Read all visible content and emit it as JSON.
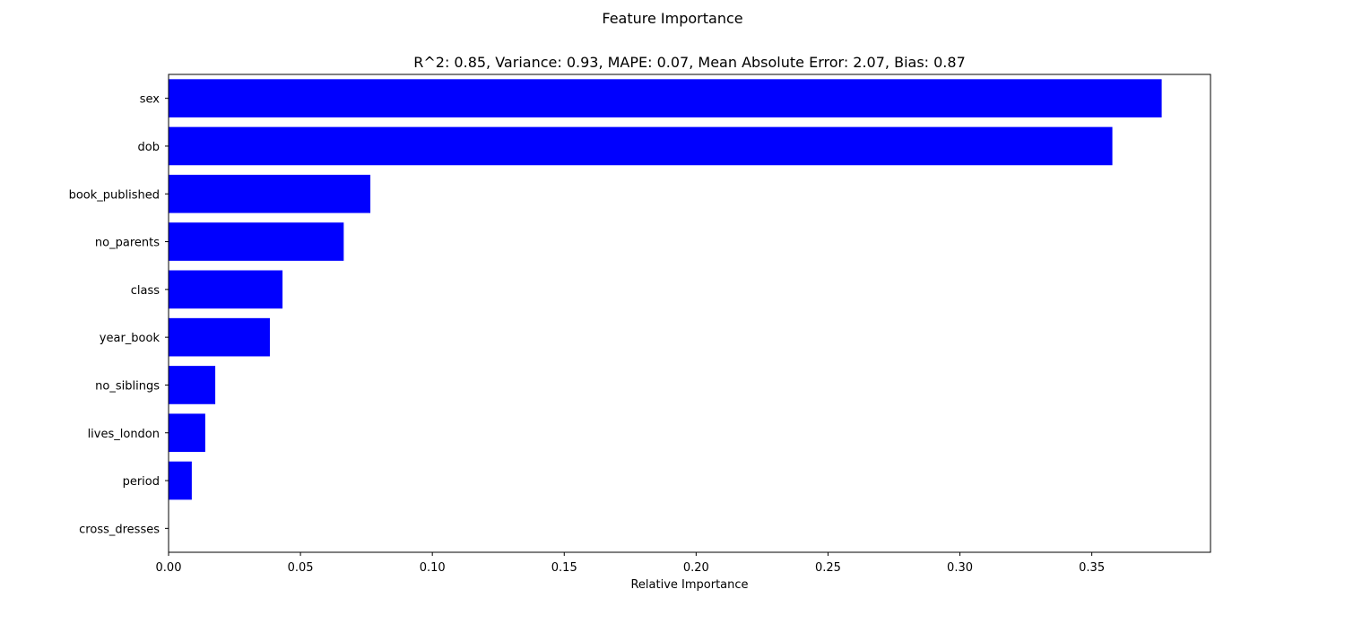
{
  "chart_data": {
    "type": "bar",
    "orientation": "horizontal",
    "suptitle": "Feature Importance",
    "title": "R^2: 0.85, Variance: 0.93, MAPE: 0.07, Mean Absolute Error: 2.07, Bias: 0.87",
    "xlabel": "Relative Importance",
    "ylabel": "",
    "categories": [
      "sex",
      "dob",
      "book_published",
      "no_parents",
      "class",
      "year_book",
      "no_siblings",
      "lives_london",
      "period",
      "cross_dresses"
    ],
    "values": [
      0.3765,
      0.3578,
      0.0765,
      0.0664,
      0.0432,
      0.0384,
      0.0177,
      0.0139,
      0.0088,
      0.0
    ],
    "xlim": [
      0,
      0.395
    ],
    "xticks": [
      0.0,
      0.05,
      0.1,
      0.15,
      0.2,
      0.25,
      0.3,
      0.35
    ],
    "xtick_labels": [
      "0.00",
      "0.05",
      "0.10",
      "0.15",
      "0.20",
      "0.25",
      "0.30",
      "0.35"
    ],
    "grid": false,
    "legend": "none",
    "bar_color": "#0000ff"
  }
}
